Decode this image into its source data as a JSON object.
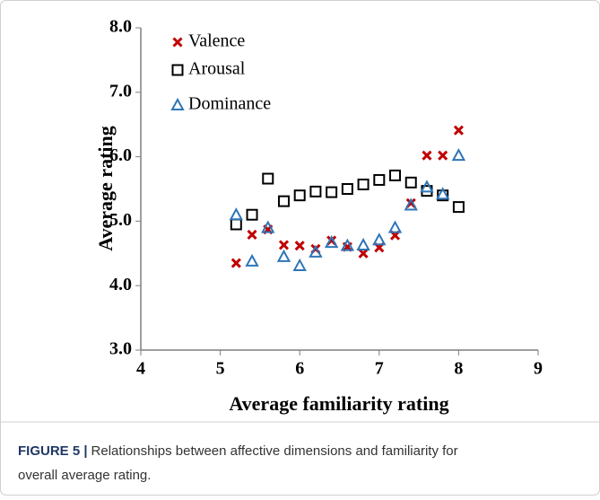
{
  "chart_data": {
    "type": "scatter",
    "x_label": "Average familiarity rating",
    "y_label": "Average rating",
    "xlim": [
      4,
      9
    ],
    "xticks": [
      4,
      5,
      6,
      7,
      8,
      9
    ],
    "ylim": [
      3,
      8
    ],
    "yticks": [
      {
        "value": 3,
        "label": "3.0"
      },
      {
        "value": 4,
        "label": "4.0"
      },
      {
        "value": 5,
        "label": "5.0"
      },
      {
        "value": 6,
        "label": "6.0"
      },
      {
        "value": 7,
        "label": "7.0"
      },
      {
        "value": 8,
        "label": "8.0"
      }
    ],
    "x": [
      5.2,
      5.4,
      5.6,
      5.8,
      6.0,
      6.2,
      6.4,
      6.6,
      6.8,
      7.0,
      7.2,
      7.4,
      7.6,
      7.8,
      8.0
    ],
    "series": [
      {
        "name": "Valence",
        "color": "#c00000",
        "marker": "x",
        "values": [
          4.35,
          4.79,
          4.87,
          4.63,
          4.62,
          4.57,
          4.7,
          4.6,
          4.5,
          4.59,
          4.78,
          5.28,
          6.02,
          6.02,
          6.41
        ]
      },
      {
        "name": "Arousal",
        "color": "#000000",
        "marker": "square",
        "values": [
          4.95,
          5.1,
          5.66,
          5.31,
          5.4,
          5.46,
          5.45,
          5.5,
          5.57,
          5.64,
          5.71,
          5.6,
          5.47,
          5.4,
          5.22
        ]
      },
      {
        "name": "Dominance",
        "color": "#2e75b6",
        "marker": "triangle",
        "values": [
          5.1,
          4.38,
          4.9,
          4.45,
          4.31,
          4.52,
          4.67,
          4.62,
          4.63,
          4.71,
          4.9,
          5.25,
          5.53,
          5.42,
          6.02
        ]
      }
    ],
    "caption_label": "FIGURE 5 |",
    "caption": [
      "Relationships between affective dimensions and familiarity for",
      "overall average rating."
    ]
  }
}
